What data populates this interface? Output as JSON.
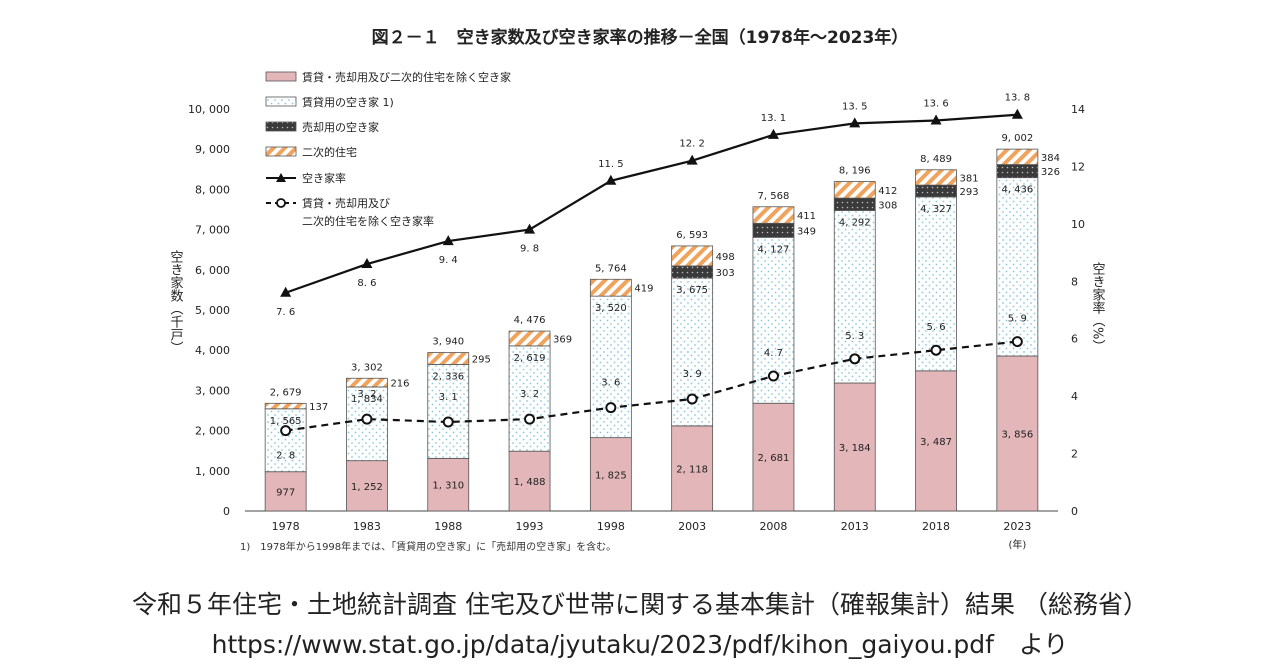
{
  "chart_data": {
    "type": "bar",
    "title": "図２－１　空き家数及び空き家率の推移－全国（1978年～2023年）",
    "categories": [
      "1978",
      "1983",
      "1988",
      "1993",
      "1998",
      "2003",
      "2008",
      "2013",
      "2018",
      "2023"
    ],
    "x_unit": "(年)",
    "ylabel": "空き家数（千戸）",
    "ylabel2": "空き家率（%）",
    "ylim": [
      0,
      10000
    ],
    "ylim2": [
      0,
      14
    ],
    "yticks": [
      0,
      1000,
      2000,
      3000,
      4000,
      5000,
      6000,
      7000,
      8000,
      9000,
      10000
    ],
    "ytick_labels": [
      "0",
      "1, 000",
      "2, 000",
      "3, 000",
      "4, 000",
      "5, 000",
      "6, 000",
      "7, 000",
      "8, 000",
      "9, 000",
      "10, 000"
    ],
    "yticks2": [
      0,
      2,
      4,
      6,
      8,
      10,
      12,
      14
    ],
    "ytick2_labels": [
      "0",
      "2",
      "4",
      "6",
      "8",
      "10",
      "12",
      "14"
    ],
    "stack_series": [
      {
        "key": "other",
        "name": "賃貸・売却用及び二次的住宅を除く空き家",
        "color": "#e3b7b9",
        "values": [
          977,
          1252,
          1310,
          1488,
          1825,
          2118,
          2681,
          3184,
          3487,
          3856
        ],
        "labels": [
          "977",
          "1, 252",
          "1, 310",
          "1, 488",
          "1, 825",
          "2, 118",
          "2, 681",
          "3, 184",
          "3, 487",
          "3, 856"
        ]
      },
      {
        "key": "rental",
        "name": "賃貸用の空き家 1)",
        "color": "#9fd2e3",
        "values": [
          1565,
          1834,
          2336,
          2619,
          3520,
          3675,
          4127,
          4292,
          4327,
          4436
        ],
        "labels": [
          "1, 565",
          "1, 834",
          "2, 336",
          "2, 619",
          "3, 520",
          "3, 675",
          "4, 127",
          "4, 292",
          "4, 327",
          "4, 436"
        ]
      },
      {
        "key": "sale",
        "name": "売却用の空き家",
        "color": "#444444",
        "values": [
          0,
          0,
          0,
          0,
          0,
          303,
          349,
          308,
          293,
          326
        ],
        "labels": [
          "",
          "",
          "",
          "",
          "",
          "303",
          "349",
          "308",
          "293",
          "326"
        ]
      },
      {
        "key": "secondary",
        "name": "二次的住宅",
        "color": "#f0a35c",
        "values": [
          137,
          216,
          295,
          369,
          419,
          498,
          411,
          412,
          381,
          384
        ],
        "labels": [
          "137",
          "216",
          "295",
          "369",
          "419",
          "498",
          "411",
          "412",
          "381",
          "384"
        ]
      }
    ],
    "totals": [
      "2, 679",
      "3, 302",
      "3, 940",
      "4, 476",
      "5, 764",
      "6, 593",
      "7, 568",
      "8, 196",
      "8, 489",
      "9, 002"
    ],
    "line_series": [
      {
        "key": "rate",
        "name": "空き家率",
        "style": "solid",
        "marker": "triangle",
        "values": [
          7.6,
          8.6,
          9.4,
          9.8,
          11.5,
          12.2,
          13.1,
          13.5,
          13.6,
          13.8
        ],
        "labels": [
          "7. 6",
          "8. 6",
          "9. 4",
          "9. 8",
          "11. 5",
          "12. 2",
          "13. 1",
          "13. 5",
          "13. 6",
          "13. 8"
        ]
      },
      {
        "key": "rate2",
        "name": "賃貸・売却用及び二次的住宅を除く空き家率",
        "name_lines": [
          "賃貸・売却用及び",
          "二次的住宅を除く空き家率"
        ],
        "style": "dashed",
        "marker": "circle",
        "values": [
          2.8,
          3.2,
          3.1,
          3.2,
          3.6,
          3.9,
          4.7,
          5.3,
          5.6,
          5.9
        ],
        "labels": [
          "2. 8",
          "3. 2",
          "3. 1",
          "3. 2",
          "3. 6",
          "3. 9",
          "4. 7",
          "5. 3",
          "5. 6",
          "5. 9"
        ]
      }
    ],
    "footnote": "1)　1978年から1998年までは、「賃貸用の空き家」に「売却用の空き家」を含む。",
    "legend_position": "top-left"
  },
  "source": {
    "line1": "令和５年住宅・土地統計調査 住宅及び世帯に関する基本集計（確報集計）結果 （総務省）",
    "line2": "https://www.stat.go.jp/data/jyutaku/2023/pdf/kihon_gaiyou.pdf　より"
  }
}
